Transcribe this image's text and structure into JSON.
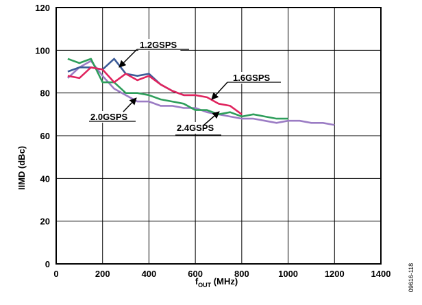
{
  "chart_data": {
    "type": "line",
    "xlabel": {
      "main": "f",
      "sub": "OUT",
      "rest": " (MHz)"
    },
    "ylabel": "IIMD (dBc)",
    "xlim": [
      0,
      1400
    ],
    "ylim": [
      0,
      120
    ],
    "xticks": [
      0,
      200,
      400,
      600,
      800,
      1000,
      1200,
      1400
    ],
    "yticks": [
      0,
      20,
      40,
      60,
      80,
      100,
      120
    ],
    "grid": true,
    "figure_id": "09616-118",
    "series": [
      {
        "name": "1.2GSPS",
        "color": "#3b5b98",
        "x": [
          50,
          100,
          150,
          200,
          250,
          300,
          350,
          400,
          450,
          500,
          550,
          600
        ],
        "y": [
          90,
          92,
          92,
          91,
          96,
          89,
          88,
          89,
          84,
          81,
          79,
          79
        ]
      },
      {
        "name": "1.6GSPS",
        "color": "#e0245e",
        "x": [
          50,
          100,
          150,
          200,
          250,
          300,
          350,
          400,
          450,
          500,
          550,
          600,
          650,
          700,
          750,
          800
        ],
        "y": [
          88,
          87,
          92,
          91,
          85,
          89,
          86,
          88,
          84,
          81,
          79,
          79,
          78,
          75,
          74,
          70
        ]
      },
      {
        "name": "2.0GSPS",
        "color": "#2e9e5b",
        "x": [
          50,
          100,
          150,
          200,
          250,
          300,
          350,
          400,
          450,
          500,
          550,
          600,
          650,
          700,
          750,
          800,
          850,
          900,
          950,
          1000
        ],
        "y": [
          96,
          94,
          96,
          85,
          85,
          80,
          80,
          79,
          77,
          76,
          75,
          72,
          72,
          70,
          71,
          69,
          70,
          69,
          68,
          68
        ]
      },
      {
        "name": "2.4GSPS",
        "color": "#9b7cc4",
        "x": [
          50,
          100,
          150,
          200,
          250,
          300,
          350,
          400,
          450,
          500,
          550,
          600,
          650,
          700,
          750,
          800,
          850,
          900,
          950,
          1000,
          1050,
          1100,
          1150,
          1200
        ],
        "y": [
          87,
          92,
          95,
          88,
          82,
          79,
          76,
          76,
          74,
          74,
          73,
          73,
          71,
          70,
          69,
          68,
          68,
          67,
          66,
          67,
          67,
          66,
          66,
          65
        ]
      }
    ],
    "annotations": [
      {
        "text": "1.2GSPS",
        "series": "1.2GSPS"
      },
      {
        "text": "1.6GSPS",
        "series": "1.6GSPS"
      },
      {
        "text": "2.0GSPS",
        "series": "2.0GSPS"
      },
      {
        "text": "2.4GSPS",
        "series": "2.4GSPS"
      }
    ]
  }
}
